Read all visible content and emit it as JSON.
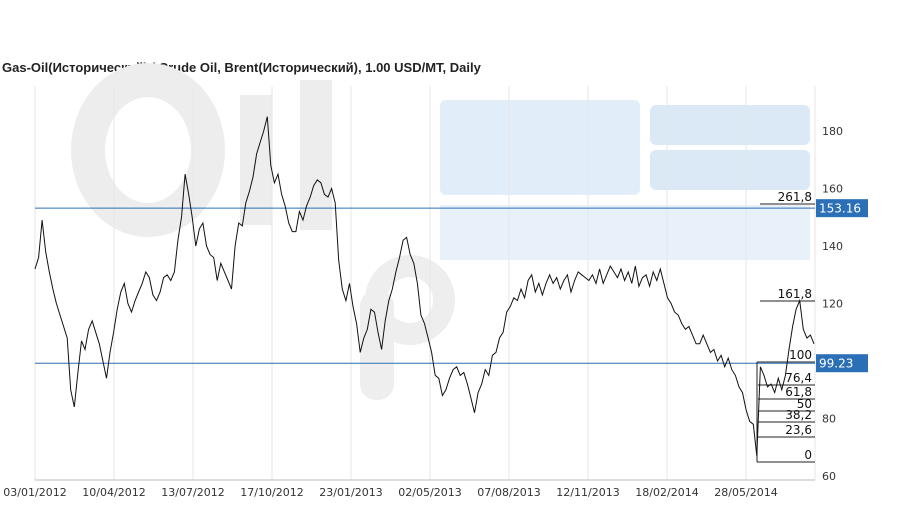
{
  "chart_data": {
    "type": "line",
    "title": "Gas-Oil(Исторический) / Crude Oil, Brent(Исторический), 1.00 USD/MT, Daily",
    "xlabel": "",
    "ylabel": "",
    "ylim": [
      60,
      190
    ],
    "grid": true,
    "x_ticks": [
      "03/01/2012",
      "10/04/2012",
      "13/07/2012",
      "17/10/2012",
      "23/01/2013",
      "02/05/2013",
      "07/08/2013",
      "12/11/2013",
      "18/02/2014",
      "28/05/2014"
    ],
    "y_ticks": [
      60,
      80,
      100,
      120,
      140,
      160,
      180
    ],
    "series": [
      {
        "values": [
          132,
          136,
          149,
          138,
          131,
          125,
          120,
          116,
          112,
          108,
          90,
          84,
          96,
          107,
          104,
          111,
          114,
          110,
          106,
          100,
          94,
          103,
          110,
          118,
          124,
          127,
          120,
          117,
          121,
          124,
          127,
          131,
          129,
          123,
          121,
          124,
          129,
          130,
          128,
          131,
          142,
          150,
          165,
          158,
          150,
          140,
          146,
          148,
          140,
          137,
          136,
          128,
          134,
          131,
          128,
          125,
          140,
          148,
          147,
          155,
          159,
          164,
          172,
          176,
          180,
          185,
          168,
          162,
          165,
          158,
          154,
          148,
          145,
          145,
          152,
          149,
          154,
          157,
          161,
          163,
          162,
          158,
          157,
          160,
          155,
          135,
          125,
          121,
          127,
          119,
          113,
          103,
          108,
          111,
          118,
          117,
          110,
          104,
          114,
          121,
          125,
          131,
          136,
          142,
          143,
          137,
          134,
          127,
          116,
          113,
          108,
          103,
          95,
          94,
          88,
          90,
          94,
          97,
          98,
          95,
          96,
          92,
          87,
          82,
          89,
          92,
          97,
          95,
          102,
          103,
          108,
          110,
          117,
          119,
          122,
          121,
          125,
          122,
          128,
          130,
          124,
          127,
          123,
          127,
          130,
          127,
          129,
          125,
          128,
          130,
          124,
          128,
          131,
          130,
          129,
          128,
          130,
          127,
          132,
          127,
          130,
          133,
          131,
          129,
          132,
          128,
          131,
          127,
          133,
          126,
          129,
          130,
          126,
          131,
          128,
          132,
          127,
          122,
          120,
          117,
          116,
          113,
          111,
          112,
          109,
          106,
          106,
          109,
          106,
          103,
          104,
          100,
          102,
          98,
          101,
          97,
          95,
          91,
          89,
          83,
          79,
          78,
          67,
          98,
          95,
          91,
          92,
          89,
          94,
          90,
          95,
          104,
          112,
          118,
          121,
          111,
          108,
          109,
          106
        ]
      }
    ],
    "fibonacci_levels": [
      "261,8",
      "161,8",
      "100",
      "76,4",
      "61,8",
      "50",
      "38,2",
      "23,6",
      "0"
    ],
    "price_badges": [
      {
        "label": "153.16",
        "value": 153.16
      },
      {
        "label": "99.23",
        "value": 99.23
      }
    ],
    "colors": {
      "line": "#111111",
      "grid": "#e6e6e6",
      "hline": "#2b6fb6",
      "badge_bg": "#2b6fb6",
      "watermark": "#e9e9e9",
      "watermark_blue": "#dbe9f7"
    }
  }
}
